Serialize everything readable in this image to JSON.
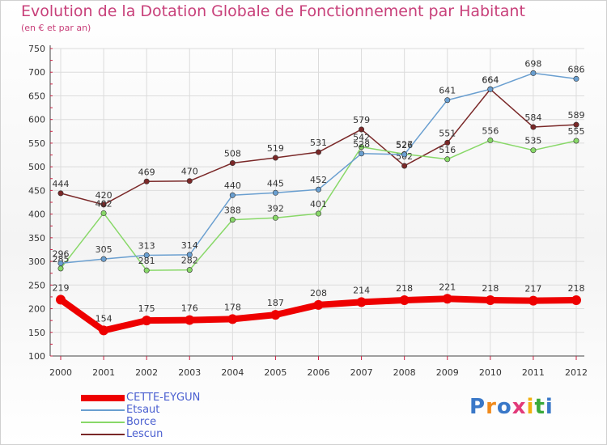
{
  "header": {
    "title": "Evolution de la Dotation Globale de Fonctionnement par Habitant",
    "subtitle": "(en € et par an)"
  },
  "logo": {
    "text": "Proxiti"
  },
  "chart_data": {
    "type": "line",
    "x": [
      "2000",
      "2001",
      "2002",
      "2003",
      "2004",
      "2005",
      "2006",
      "2007",
      "2008",
      "2009",
      "2010",
      "2011",
      "2012"
    ],
    "ylim": [
      100,
      750
    ],
    "yticks": [
      100,
      150,
      200,
      250,
      300,
      350,
      400,
      450,
      500,
      550,
      600,
      650,
      700,
      750
    ],
    "grid": true,
    "legend_position": "bottom-left",
    "series": [
      {
        "name": "CETTE-EYGUN",
        "color": "#ee0000",
        "values": [
          219,
          154,
          175,
          176,
          178,
          187,
          208,
          214,
          218,
          221,
          218,
          217,
          218
        ]
      },
      {
        "name": "Etsaut",
        "color": "#6a9fd0",
        "values": [
          296,
          305,
          313,
          314,
          440,
          445,
          452,
          528,
          526,
          641,
          664,
          698,
          686
        ]
      },
      {
        "name": "Borce",
        "color": "#88d868",
        "values": [
          285,
          402,
          281,
          282,
          388,
          392,
          401,
          542,
          527,
          516,
          556,
          535,
          555
        ]
      },
      {
        "name": "Lescun",
        "color": "#7a2828",
        "values": [
          444,
          420,
          469,
          470,
          508,
          519,
          531,
          579,
          502,
          551,
          664,
          584,
          589
        ]
      }
    ]
  }
}
